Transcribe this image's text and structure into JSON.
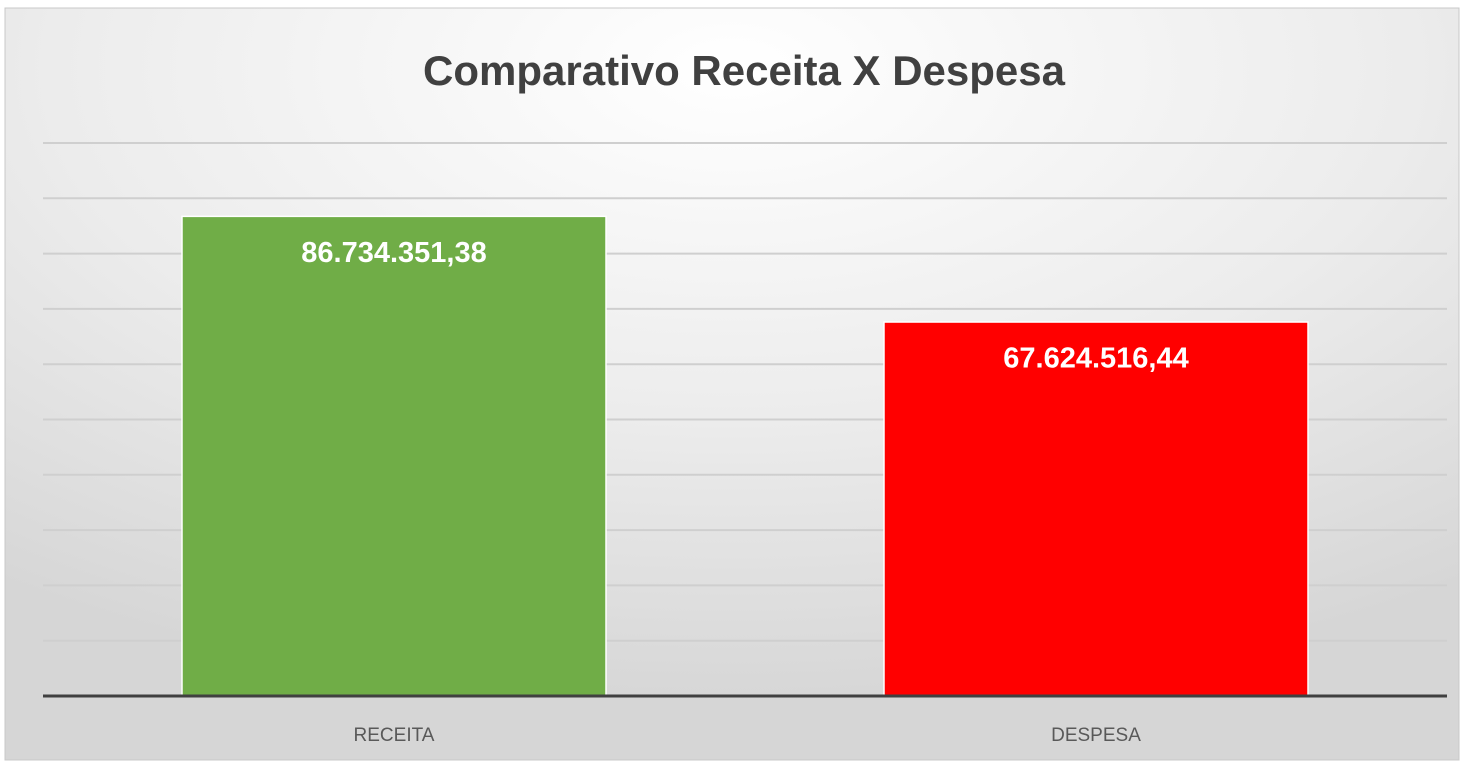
{
  "chart_data": {
    "type": "bar",
    "title": "Comparativo Receita X Despesa",
    "categories": [
      "RECEITA",
      "DESPESA"
    ],
    "values": [
      86734351.38,
      67624516.44
    ],
    "value_labels": [
      "86.734.351,38",
      "67.624.516,44"
    ],
    "colors": [
      "#70ad47",
      "#ff0000"
    ],
    "ylim": [
      0,
      100000000
    ],
    "yticks": [
      0,
      10000000,
      20000000,
      30000000,
      40000000,
      50000000,
      60000000,
      70000000,
      80000000,
      90000000,
      100000000
    ],
    "grid": true
  }
}
